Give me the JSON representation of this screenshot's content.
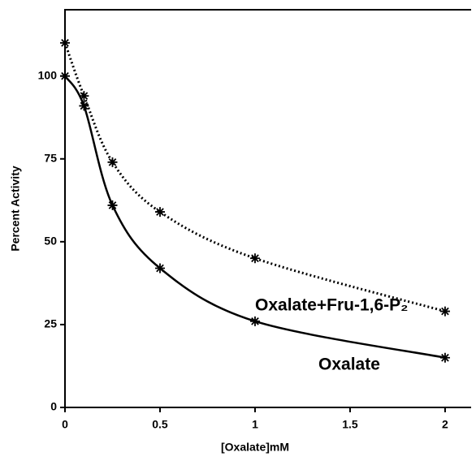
{
  "chart_data": {
    "type": "line",
    "x_label": "[Oxalate]mM",
    "y_label": "Percent Activity",
    "xlim": [
      0,
      2.137
    ],
    "ylim": [
      0,
      120
    ],
    "xticks": [
      0,
      0.5,
      1,
      1.5,
      2
    ],
    "yticks": [
      0,
      25,
      50,
      75,
      100
    ],
    "series": [
      {
        "name": "Oxalate",
        "color": "#000000",
        "dash": "solid",
        "x": [
          0,
          0.1,
          0.25,
          0.5,
          1,
          2
        ],
        "values": [
          100,
          91,
          61,
          42,
          26,
          15
        ]
      },
      {
        "name": "Oxalate+Fru-1,6-P₂",
        "color": "#000000",
        "dash": "dotted",
        "x": [
          0,
          0.1,
          0.25,
          0.5,
          1,
          2
        ],
        "values": [
          110,
          94,
          74,
          59,
          45,
          29
        ]
      }
    ]
  }
}
